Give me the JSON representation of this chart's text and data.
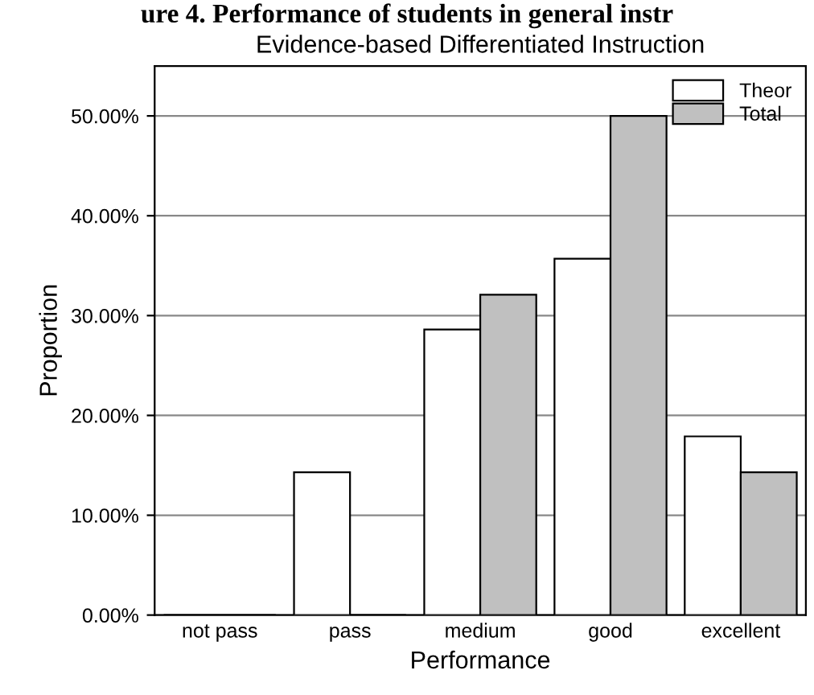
{
  "chart_data": {
    "type": "bar",
    "title": "Evidence-based Differentiated Instruction",
    "xlabel": "Performance",
    "ylabel": "Proportion",
    "annotations": [
      "ure 4. Performance of students in general instr"
    ],
    "categories": [
      "not pass",
      "pass",
      "medium",
      "good",
      "excellent"
    ],
    "series": [
      {
        "name": "Theor",
        "color": "#ffffff",
        "values": [
          0,
          14.3,
          28.6,
          35.7,
          17.9
        ]
      },
      {
        "name": "Total",
        "color": "#c0c0c0",
        "values": [
          0,
          0,
          32.1,
          50.0,
          14.3
        ]
      }
    ],
    "ylim": [
      0,
      55
    ],
    "yticks": [
      {
        "value": 0,
        "label": "0.00%"
      },
      {
        "value": 10,
        "label": "10.00%"
      },
      {
        "value": 20,
        "label": "20.00%"
      },
      {
        "value": 30,
        "label": "30.00%"
      },
      {
        "value": 40,
        "label": "40.00%"
      },
      {
        "value": 50,
        "label": "50.00%"
      }
    ],
    "grid": "y",
    "legend": "top right"
  }
}
